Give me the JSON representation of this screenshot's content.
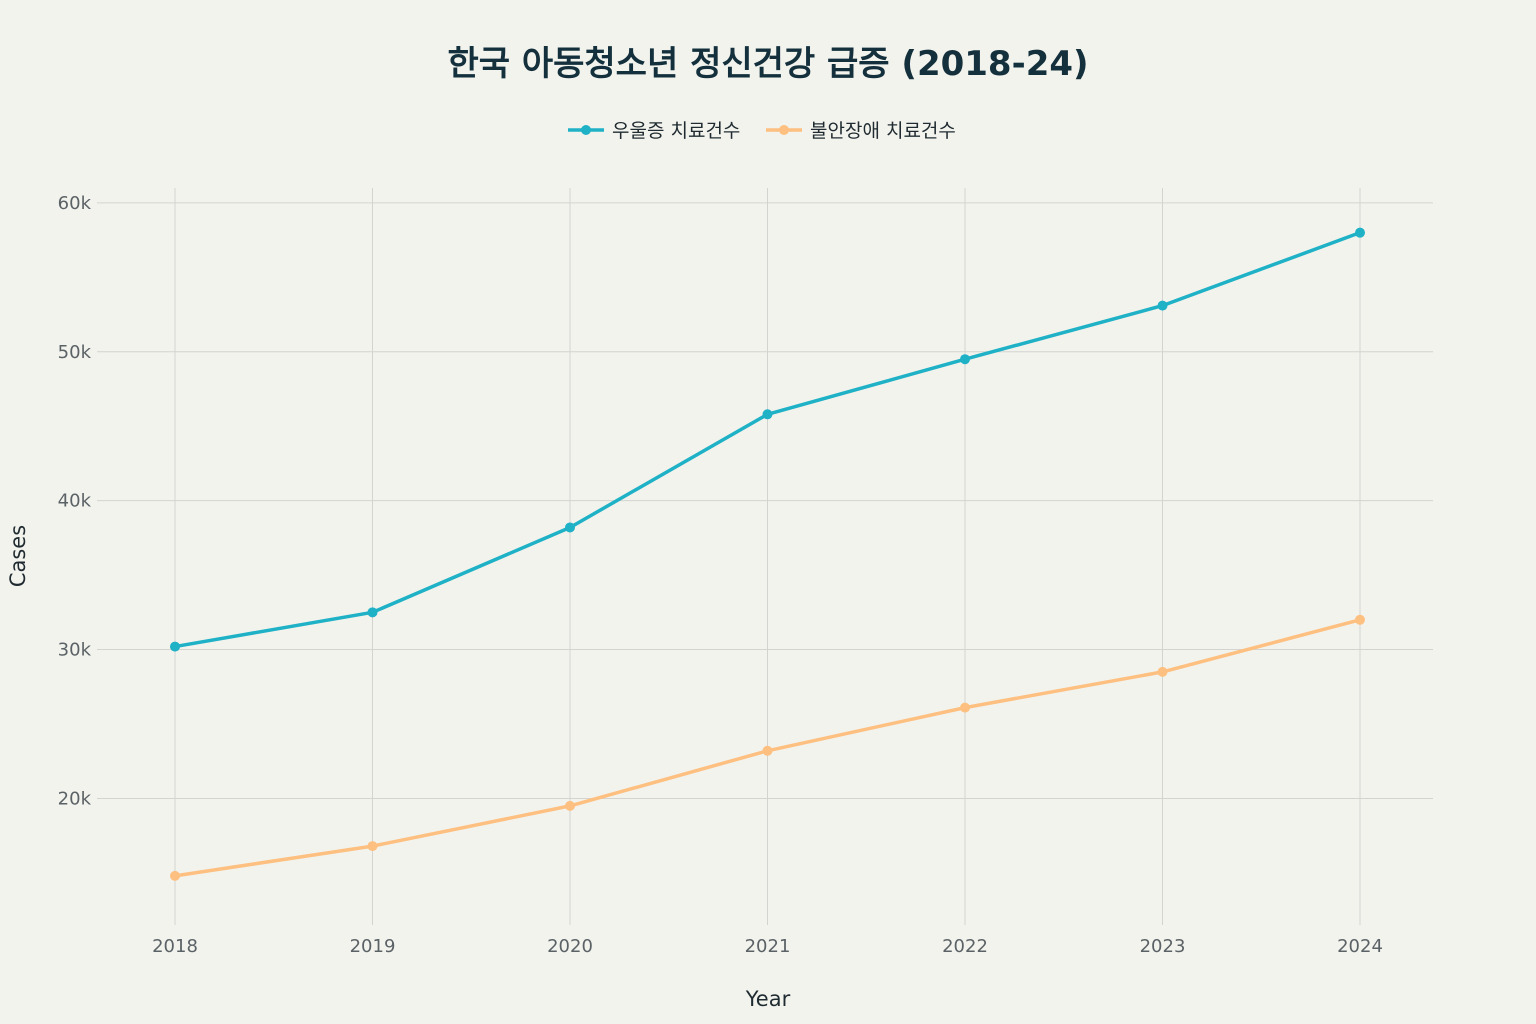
{
  "chart_data": {
    "type": "line",
    "title": "한국 아동청소년 정신건강 급증 (2018-24)",
    "xlabel": "Year",
    "ylabel": "Cases",
    "x": [
      2018,
      2019,
      2020,
      2021,
      2022,
      2023,
      2024
    ],
    "x_tick_labels": [
      "2018",
      "2019",
      "2020",
      "2021",
      "2022",
      "2023",
      "2024"
    ],
    "y_ticks": [
      20000,
      30000,
      40000,
      50000,
      60000
    ],
    "y_tick_labels": [
      "20k",
      "30k",
      "40k",
      "50k",
      "60k"
    ],
    "ylim": [
      11500,
      61000
    ],
    "grid": true,
    "legend_position": "top-center",
    "series": [
      {
        "name": "우울증 치료건수",
        "color": "#1fb1c6",
        "values": [
          30200,
          32500,
          38200,
          45800,
          49500,
          53100,
          58000
        ]
      },
      {
        "name": "불안장애 치료건수",
        "color": "#fdc081",
        "values": [
          14800,
          16800,
          19500,
          23200,
          26100,
          28500,
          32000
        ]
      }
    ]
  }
}
